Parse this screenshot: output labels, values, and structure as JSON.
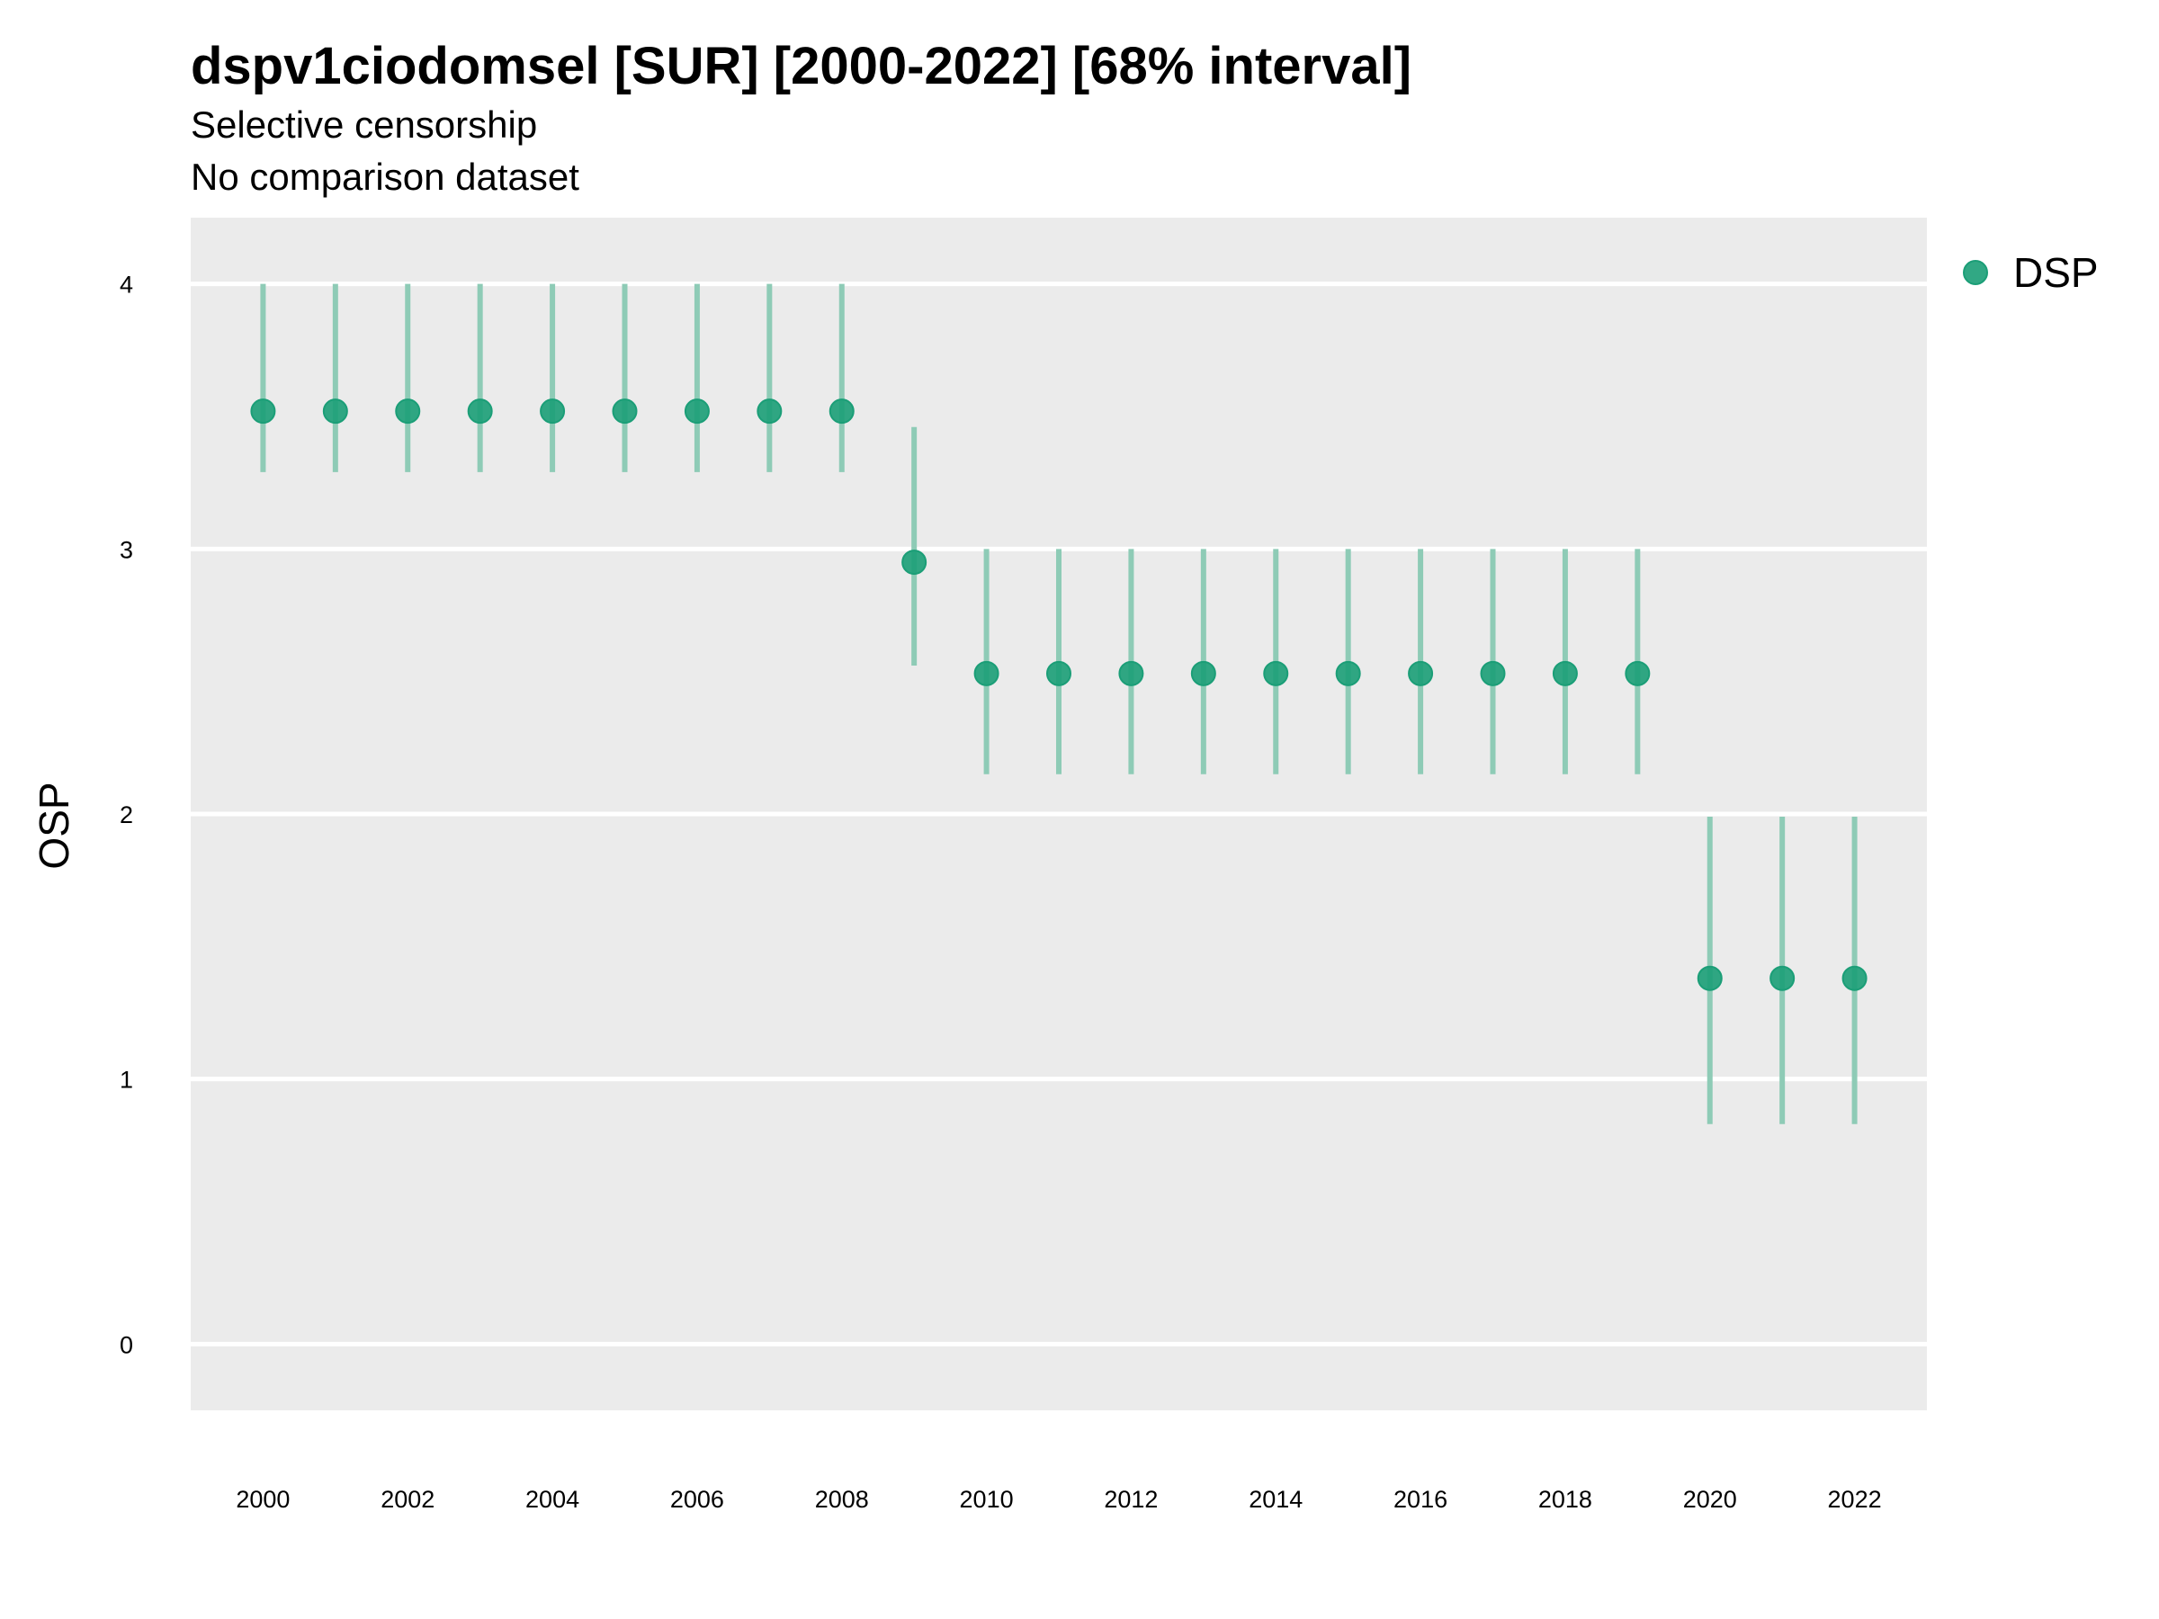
{
  "chart_data": {
    "type": "scatter",
    "title": "dspv1ciodomsel [SUR] [2000-2022] [68% interval]",
    "subtitle": "Selective censorship",
    "subtitle2": "No comparison dataset",
    "xlabel": "",
    "ylabel": "OSP",
    "xlim": [
      1999,
      2023
    ],
    "ylim": [
      -0.25,
      4.25
    ],
    "x_ticks": [
      2000,
      2002,
      2004,
      2006,
      2008,
      2010,
      2012,
      2014,
      2016,
      2018,
      2020,
      2022
    ],
    "y_ticks": [
      0,
      1,
      2,
      3,
      4
    ],
    "grid": true,
    "legend_position": "right",
    "colors": {
      "panel": "#ebebeb",
      "grid": "#ffffff",
      "point": "#1b9e77",
      "interval": "#8ecbb6"
    },
    "series": [
      {
        "name": "DSP",
        "x": [
          2000,
          2001,
          2002,
          2003,
          2004,
          2005,
          2006,
          2007,
          2008,
          2009,
          2010,
          2011,
          2012,
          2013,
          2014,
          2015,
          2016,
          2017,
          2018,
          2019,
          2020,
          2021,
          2022
        ],
        "y": [
          3.52,
          3.52,
          3.52,
          3.52,
          3.52,
          3.52,
          3.52,
          3.52,
          3.52,
          2.95,
          2.53,
          2.53,
          2.53,
          2.53,
          2.53,
          2.53,
          2.53,
          2.53,
          2.53,
          2.53,
          1.38,
          1.38,
          1.38
        ],
        "lower": [
          3.29,
          3.29,
          3.29,
          3.29,
          3.29,
          3.29,
          3.29,
          3.29,
          3.29,
          2.56,
          2.15,
          2.15,
          2.15,
          2.15,
          2.15,
          2.15,
          2.15,
          2.15,
          2.15,
          2.15,
          0.83,
          0.83,
          0.83
        ],
        "upper": [
          4.0,
          4.0,
          4.0,
          4.0,
          4.0,
          4.0,
          4.0,
          4.0,
          4.0,
          3.46,
          3.0,
          3.0,
          3.0,
          3.0,
          3.0,
          3.0,
          3.0,
          3.0,
          3.0,
          3.0,
          1.99,
          1.99,
          1.99
        ]
      }
    ]
  }
}
